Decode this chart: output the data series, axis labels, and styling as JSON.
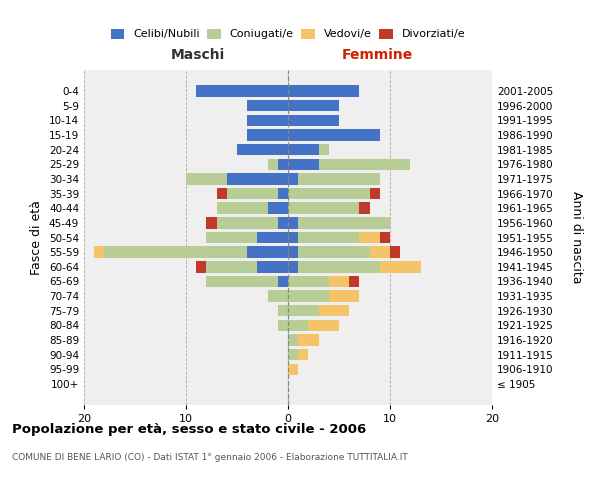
{
  "age_groups": [
    "100+",
    "95-99",
    "90-94",
    "85-89",
    "80-84",
    "75-79",
    "70-74",
    "65-69",
    "60-64",
    "55-59",
    "50-54",
    "45-49",
    "40-44",
    "35-39",
    "30-34",
    "25-29",
    "20-24",
    "15-19",
    "10-14",
    "5-9",
    "0-4"
  ],
  "birth_years": [
    "≤ 1905",
    "1906-1910",
    "1911-1915",
    "1916-1920",
    "1921-1925",
    "1926-1930",
    "1931-1935",
    "1936-1940",
    "1941-1945",
    "1946-1950",
    "1951-1955",
    "1956-1960",
    "1961-1965",
    "1966-1970",
    "1971-1975",
    "1976-1980",
    "1981-1985",
    "1986-1990",
    "1991-1995",
    "1996-2000",
    "2001-2005"
  ],
  "colors": {
    "celibi": "#4472c4",
    "coniugati": "#b8cc96",
    "vedovi": "#f5c469",
    "divorziati": "#c0392b"
  },
  "maschi": {
    "celibi": [
      0,
      0,
      0,
      0,
      0,
      0,
      0,
      1,
      3,
      4,
      3,
      1,
      2,
      1,
      6,
      1,
      5,
      4,
      4,
      4,
      9
    ],
    "coniugati": [
      0,
      0,
      0,
      0,
      1,
      1,
      2,
      7,
      5,
      14,
      5,
      6,
      5,
      5,
      4,
      1,
      0,
      0,
      0,
      0,
      0
    ],
    "vedovi": [
      0,
      0,
      0,
      0,
      0,
      0,
      0,
      0,
      0,
      1,
      0,
      0,
      0,
      0,
      0,
      0,
      0,
      0,
      0,
      0,
      0
    ],
    "divorziati": [
      0,
      0,
      0,
      0,
      0,
      0,
      0,
      0,
      1,
      0,
      0,
      1,
      0,
      1,
      0,
      0,
      0,
      0,
      0,
      0,
      0
    ]
  },
  "femmine": {
    "celibi": [
      0,
      0,
      0,
      0,
      0,
      0,
      0,
      0,
      1,
      1,
      1,
      1,
      0,
      0,
      1,
      3,
      3,
      9,
      5,
      5,
      7
    ],
    "coniugati": [
      0,
      0,
      1,
      1,
      2,
      3,
      4,
      4,
      8,
      7,
      6,
      9,
      7,
      8,
      8,
      9,
      1,
      0,
      0,
      0,
      0
    ],
    "vedovi": [
      0,
      1,
      1,
      2,
      3,
      3,
      3,
      2,
      4,
      2,
      2,
      0,
      0,
      0,
      0,
      0,
      0,
      0,
      0,
      0,
      0
    ],
    "divorziati": [
      0,
      0,
      0,
      0,
      0,
      0,
      0,
      1,
      0,
      1,
      1,
      0,
      1,
      1,
      0,
      0,
      0,
      0,
      0,
      0,
      0
    ]
  },
  "xlim": 20,
  "title": "Popolazione per età, sesso e stato civile - 2006",
  "subtitle": "COMUNE DI BENE LARIO (CO) - Dati ISTAT 1° gennaio 2006 - Elaborazione TUTTITALIA.IT",
  "ylabel_left": "Fasce di età",
  "ylabel_right": "Anni di nascita",
  "xlabel_maschi": "Maschi",
  "xlabel_femmine": "Femmine",
  "legend_labels": [
    "Celibi/Nubili",
    "Coniugati/e",
    "Vedovi/e",
    "Divorziati/e"
  ],
  "bg_color": "#efefef",
  "maschi_label_color": "#333333",
  "femmine_label_color": "#cc2200"
}
